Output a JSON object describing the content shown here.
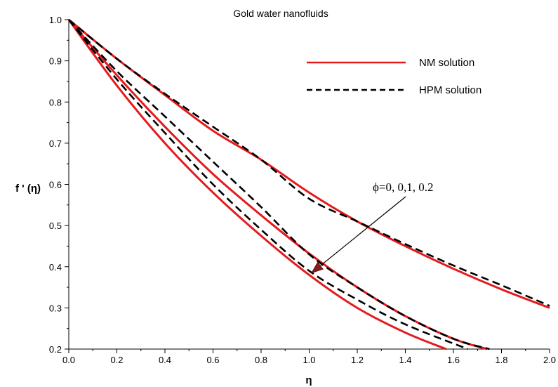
{
  "chart_data": {
    "type": "line",
    "title": "Gold water nanofluids",
    "xlabel": "η",
    "ylabel": "f ' (η)",
    "xlim": [
      0.0,
      2.0
    ],
    "ylim": [
      0.2,
      1.0
    ],
    "xticks": [
      "0.0",
      "0.2",
      "0.4",
      "0.6",
      "0.8",
      "1.0",
      "1.2",
      "1.4",
      "1.6",
      "1.8",
      "2.0"
    ],
    "yticks": [
      "0.2",
      "0.3",
      "0.4",
      "0.5",
      "0.6",
      "0.7",
      "0.8",
      "0.9",
      "1.0"
    ],
    "grid": false,
    "legend": {
      "placement": "top-right",
      "entries": [
        {
          "label": "NM solution",
          "style": "solid",
          "color": "#e41a1c"
        },
        {
          "label": "HPM solution",
          "style": "dashed",
          "color": "#000000"
        }
      ]
    },
    "annotation": {
      "text": "ϕ=0, 0,1, 0.2",
      "points_to": [
        1.01,
        0.385
      ]
    },
    "series": [
      {
        "style": "solid",
        "color": "#e41a1c",
        "x": [
          0.0,
          0.2,
          0.4,
          0.6,
          0.8,
          1.0,
          1.2,
          1.4,
          1.6,
          1.8,
          2.0
        ],
        "y": [
          1.0,
          0.905,
          0.817,
          0.73,
          0.66,
          0.58,
          0.51,
          0.45,
          0.395,
          0.345,
          0.3
        ]
      },
      {
        "style": "dashed",
        "color": "#000000",
        "x": [
          0.0,
          0.2,
          0.4,
          0.6,
          0.8,
          1.0,
          1.2,
          1.4,
          1.6,
          1.8,
          2.0
        ],
        "y": [
          1.0,
          0.905,
          0.82,
          0.74,
          0.66,
          0.565,
          0.51,
          0.455,
          0.403,
          0.355,
          0.305
        ]
      },
      {
        "style": "solid",
        "color": "#e41a1c",
        "x": [
          0.0,
          0.2,
          0.4,
          0.6,
          0.8,
          1.0,
          1.2,
          1.4,
          1.6,
          1.74
        ],
        "y": [
          1.0,
          0.865,
          0.74,
          0.625,
          0.525,
          0.432,
          0.35,
          0.28,
          0.225,
          0.2
        ]
      },
      {
        "style": "dashed",
        "color": "#000000",
        "x": [
          0.0,
          0.2,
          0.4,
          0.6,
          0.8,
          1.0,
          1.2,
          1.4,
          1.6,
          1.75
        ],
        "y": [
          1.0,
          0.875,
          0.765,
          0.655,
          0.545,
          0.43,
          0.35,
          0.28,
          0.225,
          0.2
        ]
      },
      {
        "style": "solid",
        "color": "#e41a1c",
        "x": [
          0.0,
          0.2,
          0.4,
          0.6,
          0.8,
          1.0,
          1.2,
          1.4,
          1.57
        ],
        "y": [
          1.0,
          0.84,
          0.7,
          0.58,
          0.475,
          0.38,
          0.3,
          0.24,
          0.2
        ]
      },
      {
        "style": "dashed",
        "color": "#000000",
        "x": [
          0.0,
          0.2,
          0.4,
          0.6,
          0.8,
          1.0,
          1.2,
          1.4,
          1.66
        ],
        "y": [
          1.0,
          0.855,
          0.725,
          0.6,
          0.49,
          0.39,
          0.32,
          0.26,
          0.2
        ]
      }
    ]
  }
}
